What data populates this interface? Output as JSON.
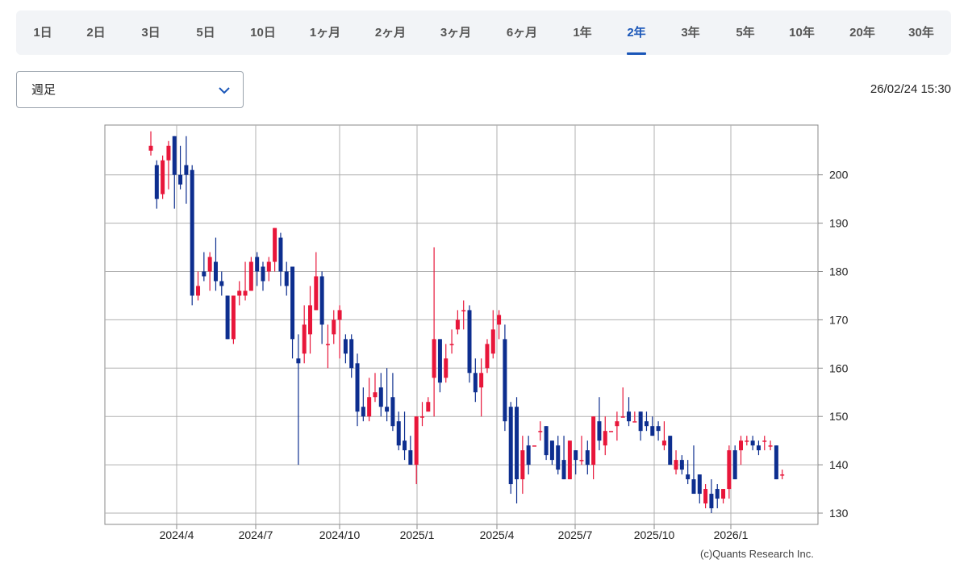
{
  "tabs": [
    {
      "label": "1日",
      "active": false
    },
    {
      "label": "2日",
      "active": false
    },
    {
      "label": "3日",
      "active": false
    },
    {
      "label": "5日",
      "active": false
    },
    {
      "label": "10日",
      "active": false
    },
    {
      "label": "1ヶ月",
      "active": false
    },
    {
      "label": "2ヶ月",
      "active": false
    },
    {
      "label": "3ヶ月",
      "active": false
    },
    {
      "label": "6ヶ月",
      "active": false
    },
    {
      "label": "1年",
      "active": false
    },
    {
      "label": "2年",
      "active": true
    },
    {
      "label": "3年",
      "active": false
    },
    {
      "label": "5年",
      "active": false
    },
    {
      "label": "10年",
      "active": false
    },
    {
      "label": "20年",
      "active": false
    },
    {
      "label": "30年",
      "active": false
    }
  ],
  "period_select": {
    "value": "週足",
    "icon": "chevron-down-icon"
  },
  "timestamp": "26/02/24 15:30",
  "copyright": "(c)Quants Research Inc.",
  "colors": {
    "up": "#e8163a",
    "down": "#0d2e8f",
    "accent": "#1a56b8",
    "grid": "#b0b0b0"
  },
  "chart_data": {
    "type": "candlestick",
    "interval": "weekly",
    "ylim": [
      128,
      211
    ],
    "yticks": [
      130,
      140,
      150,
      160,
      170,
      180,
      190,
      200
    ],
    "xticks": [
      "2024/4",
      "2024/7",
      "2024/10",
      "2025/1",
      "2025/4",
      "2025/7",
      "2025/10",
      "2026/1"
    ],
    "grid": true,
    "candles": [
      [
        205,
        206,
        209,
        204
      ],
      [
        202,
        195,
        203,
        193
      ],
      [
        196,
        203,
        204,
        195
      ],
      [
        203,
        206,
        207,
        197
      ],
      [
        208,
        200,
        208,
        193
      ],
      [
        200,
        198,
        206,
        197
      ],
      [
        202,
        200,
        208,
        194
      ],
      [
        201,
        175,
        202,
        173
      ],
      [
        175,
        177,
        180,
        174
      ],
      [
        180,
        179,
        184,
        178
      ],
      [
        180,
        183,
        184,
        176
      ],
      [
        182,
        178,
        187,
        176
      ],
      [
        178,
        177,
        180,
        175
      ],
      [
        175,
        166,
        175,
        166
      ],
      [
        166,
        175,
        175,
        165
      ],
      [
        175,
        176,
        178,
        173
      ],
      [
        175,
        176,
        182,
        174
      ],
      [
        176,
        182,
        183,
        176
      ],
      [
        183,
        180,
        184,
        177
      ],
      [
        181,
        178,
        182,
        176
      ],
      [
        180,
        182,
        183,
        178
      ],
      [
        182,
        189,
        189,
        180
      ],
      [
        187,
        180,
        188,
        177
      ],
      [
        180,
        177,
        182,
        175
      ],
      [
        181,
        166,
        181,
        162
      ],
      [
        162,
        161,
        167,
        140
      ],
      [
        163,
        169,
        173,
        161
      ],
      [
        167,
        173,
        177,
        163
      ],
      [
        172,
        179,
        184,
        172
      ],
      [
        179,
        169,
        180,
        165
      ],
      [
        165,
        165,
        169,
        160
      ],
      [
        167,
        170,
        172,
        165
      ],
      [
        170,
        172,
        173,
        162
      ],
      [
        166,
        163,
        167,
        161
      ],
      [
        166,
        160,
        167,
        158
      ],
      [
        161,
        151,
        163,
        148
      ],
      [
        152,
        150,
        156,
        149
      ],
      [
        150,
        154,
        158,
        149
      ],
      [
        154,
        155,
        159,
        153
      ],
      [
        156,
        152,
        159,
        150
      ],
      [
        152,
        151,
        160,
        149
      ],
      [
        154,
        148,
        159,
        147
      ],
      [
        149,
        144,
        151,
        143
      ],
      [
        145,
        143,
        151,
        141
      ],
      [
        143,
        140,
        146,
        140
      ],
      [
        140,
        150,
        150,
        136
      ],
      [
        150,
        150,
        153,
        148
      ],
      [
        151,
        153,
        154,
        151
      ],
      [
        158,
        166,
        185,
        150
      ],
      [
        166,
        157,
        166,
        155
      ],
      [
        158,
        162,
        165,
        157
      ],
      [
        165,
        165,
        168,
        163
      ],
      [
        168,
        170,
        172,
        167
      ],
      [
        172,
        172,
        174,
        168
      ],
      [
        172,
        159,
        173,
        157
      ],
      [
        159,
        155,
        162,
        153
      ],
      [
        156,
        159,
        162,
        150
      ],
      [
        160,
        165,
        166,
        159
      ],
      [
        163,
        168,
        172,
        162
      ],
      [
        169,
        171,
        172,
        166
      ],
      [
        166,
        149,
        169,
        147
      ],
      [
        152,
        136,
        153,
        134
      ],
      [
        152,
        137,
        154,
        132
      ],
      [
        137,
        143,
        146,
        134
      ],
      [
        144,
        140,
        146,
        138
      ],
      [
        144,
        144,
        144,
        144
      ],
      [
        147,
        147,
        149,
        145
      ],
      [
        148,
        142,
        148,
        141
      ],
      [
        145,
        141,
        145,
        140
      ],
      [
        144,
        139,
        146,
        138
      ],
      [
        141,
        137,
        146,
        137
      ],
      [
        137,
        145,
        145,
        137
      ],
      [
        143,
        141,
        143,
        138
      ],
      [
        141,
        141,
        146,
        140
      ],
      [
        143,
        140,
        145,
        138
      ],
      [
        140,
        150,
        150,
        137
      ],
      [
        149,
        145,
        154,
        143
      ],
      [
        144,
        147,
        150,
        142
      ],
      [
        147,
        147,
        147,
        147
      ],
      [
        148,
        149,
        151,
        145
      ],
      [
        150,
        150,
        156,
        150
      ],
      [
        151,
        149,
        154,
        148
      ],
      [
        149,
        149,
        151,
        149
      ],
      [
        151,
        147,
        151,
        145
      ],
      [
        149,
        148,
        151,
        147
      ],
      [
        148,
        146,
        150,
        146
      ],
      [
        148,
        147,
        149,
        145
      ],
      [
        144,
        145,
        149,
        143
      ],
      [
        146,
        140,
        146,
        140
      ],
      [
        139,
        141,
        143,
        138
      ],
      [
        141,
        139,
        142,
        138
      ],
      [
        138,
        137,
        141,
        136
      ],
      [
        137,
        134,
        144,
        134
      ],
      [
        138,
        134,
        138,
        132
      ],
      [
        132,
        135,
        136,
        131
      ],
      [
        134,
        131,
        137,
        130
      ],
      [
        135,
        133,
        136,
        131
      ],
      [
        133,
        135,
        135,
        132
      ],
      [
        135,
        143,
        144,
        133
      ],
      [
        143,
        137,
        144,
        137
      ],
      [
        143,
        145,
        146,
        140
      ],
      [
        145,
        145,
        146,
        144
      ],
      [
        145,
        144,
        146,
        143
      ],
      [
        144,
        143,
        145,
        142
      ],
      [
        145,
        145,
        146,
        143
      ],
      [
        144,
        144,
        145,
        143
      ],
      [
        144,
        137,
        144,
        137
      ],
      [
        138,
        138,
        139,
        137
      ]
    ]
  }
}
